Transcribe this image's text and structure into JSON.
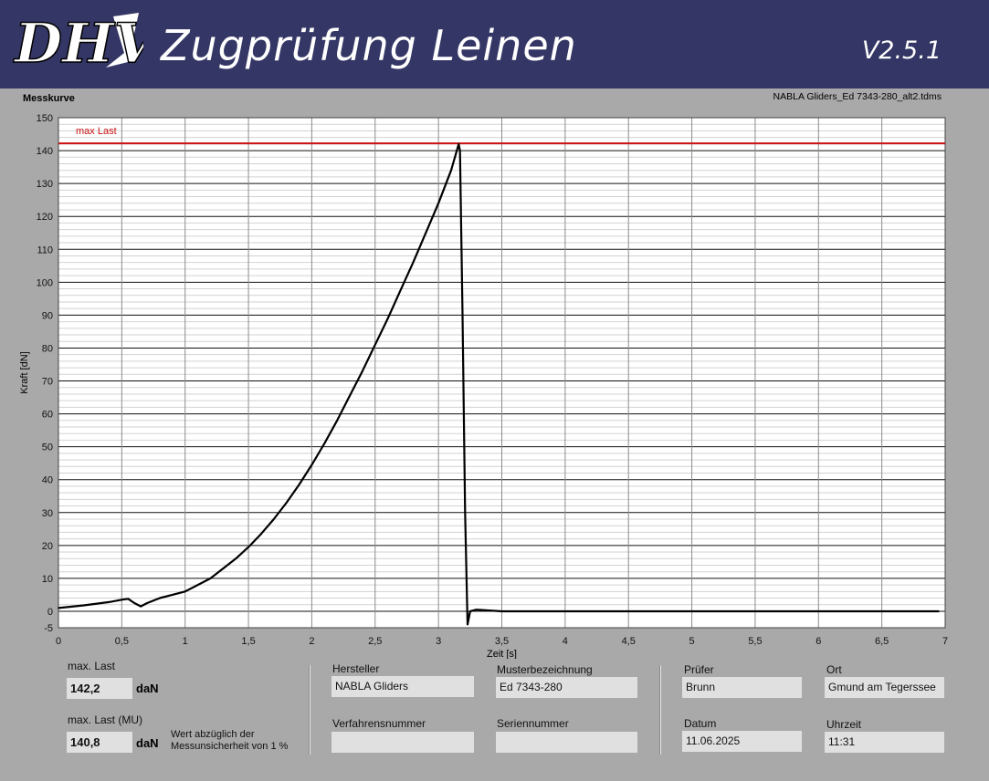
{
  "header": {
    "logo_text": "DHV",
    "title": "Zugprüfung Leinen",
    "version": "V2.5.1"
  },
  "chart_section": {
    "label": "Messkurve",
    "file_name": "NABLA Gliders_Ed 7343-280_alt2.tdms"
  },
  "chart_data": {
    "type": "line",
    "title": "",
    "xlabel": "Zeit [s]",
    "ylabel": "Kraft [dN]",
    "xlim": [
      0,
      7
    ],
    "ylim": [
      -5,
      150
    ],
    "x_ticks": [
      "0",
      "0,5",
      "1",
      "1,5",
      "2",
      "2,5",
      "3",
      "3,5",
      "4",
      "4,5",
      "5",
      "5,5",
      "6",
      "6,5",
      "7"
    ],
    "y_ticks": [
      "-5",
      "0",
      "10",
      "20",
      "30",
      "40",
      "50",
      "60",
      "70",
      "80",
      "90",
      "100",
      "110",
      "120",
      "130",
      "140",
      "150"
    ],
    "grid": true,
    "reference_line": {
      "label": "max Last",
      "value": 142.2,
      "color": "#cc1111"
    },
    "series": [
      {
        "color": "#000000",
        "x": [
          0,
          0.2,
          0.4,
          0.5,
          0.55,
          0.6,
          0.65,
          0.7,
          0.8,
          0.9,
          1.0,
          1.1,
          1.2,
          1.3,
          1.4,
          1.5,
          1.6,
          1.7,
          1.8,
          1.9,
          2.0,
          2.1,
          2.2,
          2.3,
          2.4,
          2.5,
          2.6,
          2.7,
          2.8,
          2.9,
          3.0,
          3.1,
          3.16,
          3.17,
          3.19,
          3.21,
          3.23,
          3.25,
          3.3,
          3.5,
          4.0,
          4.5,
          5.0,
          5.5,
          6.0,
          6.5,
          6.95
        ],
        "y": [
          1,
          1.8,
          2.8,
          3.5,
          3.8,
          2.5,
          1.5,
          2.5,
          4,
          5,
          6,
          8,
          10,
          13,
          16,
          19.5,
          23.5,
          28,
          33,
          38.5,
          44.5,
          51,
          58,
          65.5,
          73,
          81,
          89,
          97.5,
          106,
          115,
          124,
          134,
          142,
          140,
          90,
          30,
          -4,
          0,
          0.5,
          0,
          0,
          0,
          0,
          0,
          0,
          0,
          0
        ]
      }
    ]
  },
  "results": {
    "max_last_label": "max. Last",
    "max_last_value": "142,2",
    "max_last_unit": "daN",
    "max_last_mu_label": "max. Last (MU)",
    "max_last_mu_value": "140,8",
    "max_last_mu_unit": "daN",
    "note_line1": "Wert abzüglich der",
    "note_line2": "Messunsicherheit von 1 %"
  },
  "info": {
    "hersteller_label": "Hersteller",
    "hersteller_value": "NABLA Gliders",
    "musterbezeichnung_label": "Musterbezeichnung",
    "musterbezeichnung_value": "Ed 7343-280",
    "verfahrensnummer_label": "Verfahrensnummer",
    "verfahrensnummer_value": "",
    "seriennummer_label": "Seriennummer",
    "seriennummer_value": "",
    "pruefer_label": "Prüfer",
    "pruefer_value": "Brunn",
    "ort_label": "Ort",
    "ort_value": "Gmund am Tegerssee",
    "datum_label": "Datum",
    "datum_value": "11.06.2025",
    "uhrzeit_label": "Uhrzeit",
    "uhrzeit_value": "11:31"
  }
}
